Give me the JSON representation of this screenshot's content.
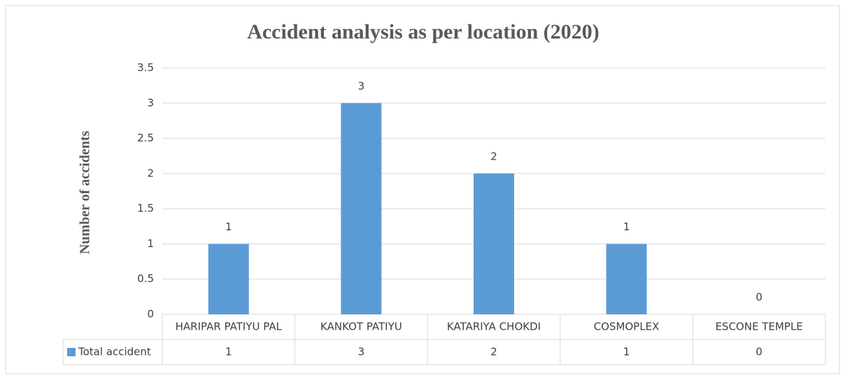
{
  "chart_data": {
    "type": "bar",
    "title": "Accident analysis as per location (2020)",
    "y_label": "Number of accidents",
    "categories": [
      "HARIPAR PATIYU PAL",
      "KANKOT PATIYU",
      "KATARIYA CHOKDI",
      "COSMOPLEX",
      "ESCONE TEMPLE"
    ],
    "series": [
      {
        "name": "Total accident",
        "color": "#5b9bd5",
        "values": [
          1,
          3,
          2,
          1,
          0
        ]
      }
    ],
    "ylim": [
      0,
      3.5
    ],
    "yticks": [
      0,
      0.5,
      1,
      1.5,
      2,
      2.5,
      3,
      3.5
    ],
    "grid": true,
    "data_table": true
  }
}
